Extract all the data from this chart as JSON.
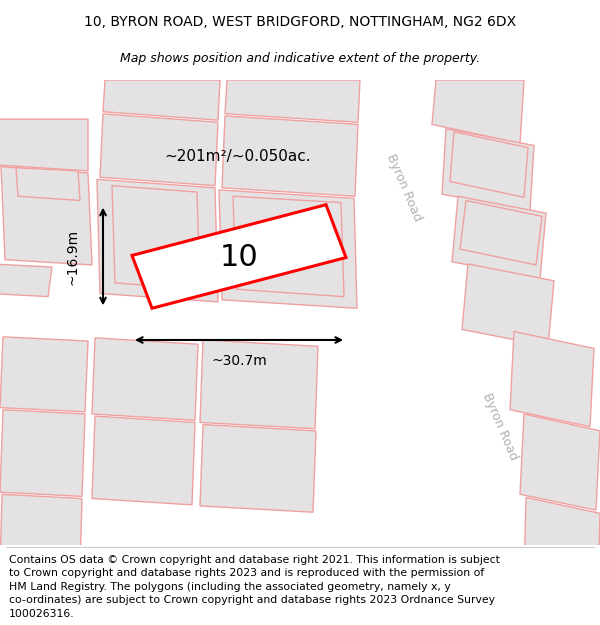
{
  "title_line1": "10, BYRON ROAD, WEST BRIDGFORD, NOTTINGHAM, NG2 6DX",
  "title_line2": "Map shows position and indicative extent of the property.",
  "footer_text": "Contains OS data © Crown copyright and database right 2021. This information is subject\nto Crown copyright and database rights 2023 and is reproduced with the permission of\nHM Land Registry. The polygons (including the associated geometry, namely x, y\nco-ordinates) are subject to Crown copyright and database rights 2023 Ordnance Survey\n100026316.",
  "bg_color": "#f0eeee",
  "road_color": "#ffffff",
  "building_outline_color": "#f0a0a0",
  "building_fill_color": "#e4e2e2",
  "highlight_color": "#ff0000",
  "road_label1": "Byron Road",
  "road_label2": "Byron Road",
  "area_label": "~201m²/~0.050ac.",
  "number_label": "10",
  "width_label": "~30.7m",
  "height_label": "~16.9m",
  "title_fontsize": 10,
  "subtitle_fontsize": 9,
  "footer_fontsize": 7.8,
  "label_fontsize": 10,
  "area_fontsize": 11,
  "number_fontsize": 22,
  "road_fontsize": 9
}
